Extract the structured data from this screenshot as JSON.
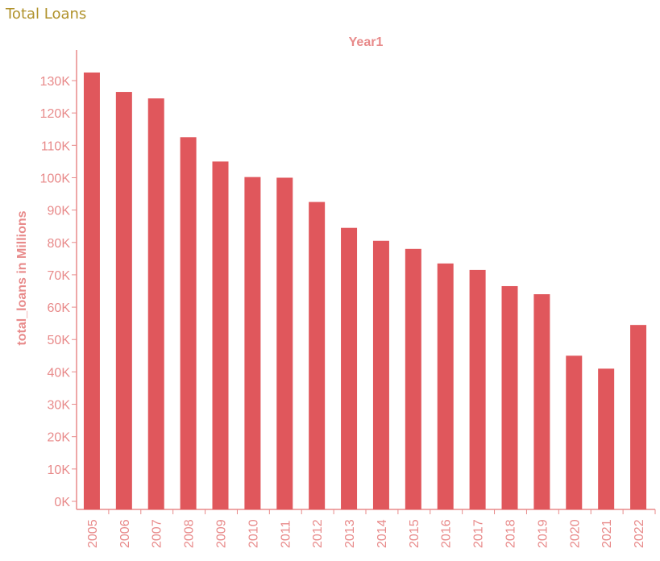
{
  "title": "Total Loans",
  "colors": {
    "title": "#B0922B",
    "bar": "#E0575C",
    "axis": "#E88A8A"
  },
  "chart_data": {
    "type": "bar",
    "title": "Total Loans",
    "column_header": "Year1",
    "xlabel": "",
    "ylabel": "total_loans in Millions",
    "categories": [
      "2005",
      "2006",
      "2007",
      "2008",
      "2009",
      "2010",
      "2011",
      "2012",
      "2013",
      "2014",
      "2015",
      "2016",
      "2017",
      "2018",
      "2019",
      "2020",
      "2021",
      "2022"
    ],
    "values": [
      132500,
      126500,
      124500,
      112500,
      105000,
      100200,
      100000,
      92500,
      84500,
      80500,
      78000,
      73500,
      71500,
      66500,
      64000,
      45000,
      41000,
      54500
    ],
    "ylim": [
      0,
      140000
    ],
    "yticks": [
      0,
      10000,
      20000,
      30000,
      40000,
      50000,
      60000,
      70000,
      80000,
      90000,
      100000,
      110000,
      120000,
      130000
    ],
    "ytick_labels": [
      "0K",
      "10K",
      "20K",
      "30K",
      "40K",
      "50K",
      "60K",
      "70K",
      "80K",
      "90K",
      "100K",
      "110K",
      "120K",
      "130K"
    ],
    "grid": false,
    "legend": "none"
  }
}
